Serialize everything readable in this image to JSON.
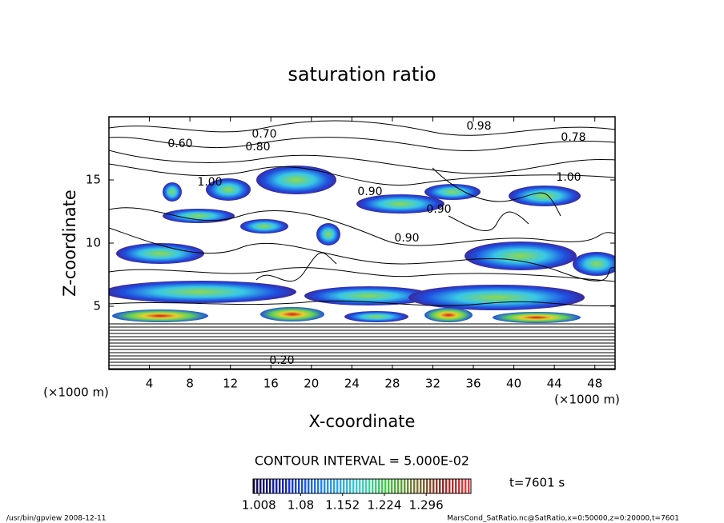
{
  "chart_data": {
    "type": "contour",
    "title": "saturation ratio",
    "x_label": "X-coordinate",
    "y_label": "Z-coordinate",
    "x_unit_label": "(×1000 m)",
    "y_unit_label": "(×1000 m)",
    "xlim": [
      0,
      50
    ],
    "xticks": [
      4,
      8,
      12,
      16,
      20,
      24,
      28,
      32,
      36,
      40,
      44,
      48
    ],
    "ylim": [
      0,
      20
    ],
    "yticks": [
      5,
      10,
      15
    ],
    "contour_labels": [
      "0.60",
      "0.80",
      "0.70",
      "0.98",
      "0.78",
      "1.00",
      "0.90",
      "0.90",
      "1.00",
      "0.90",
      "0.20"
    ],
    "contour_interval": "CONTOUR INTERVAL = 5.000E-02",
    "colorbar": {
      "clim": [
        0.998,
        1.373
      ],
      "ticks": [
        1.008,
        1.08,
        1.152,
        1.224,
        1.296
      ]
    },
    "time_label": "t=7601 s",
    "footer_left": "/usr/bin/gpview   2008-12-11",
    "footer_right": "MarsCond_SatRatio.nc@SatRatio,x=0:50000,z=0:20000,t=7601"
  }
}
